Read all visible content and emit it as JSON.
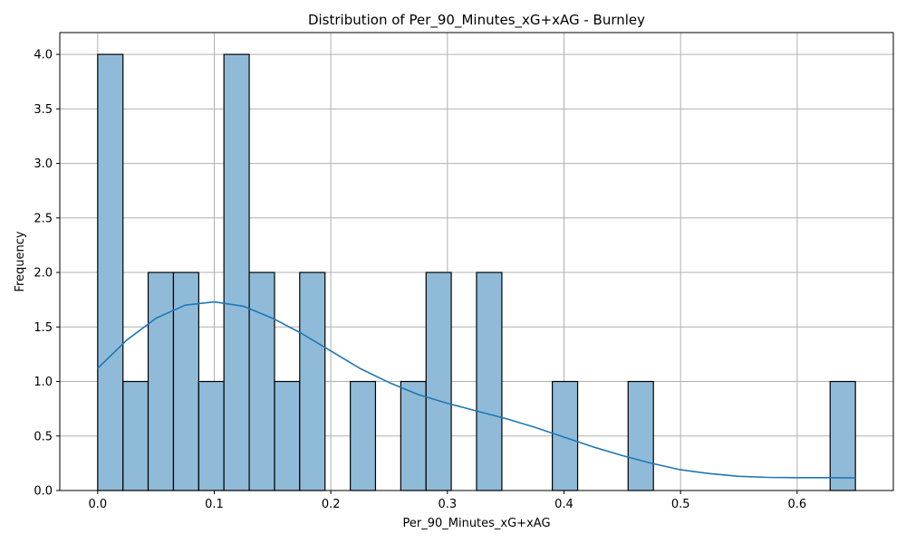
{
  "chart_data": {
    "type": "bar",
    "title": "Distribution of Per_90_Minutes_xG+xAG - Burnley",
    "xlabel": "Per_90_Minutes_xG+xAG",
    "ylabel": "Frequency",
    "xlim": [
      -0.0325,
      0.6825
    ],
    "ylim": [
      0,
      4.2
    ],
    "grid": true,
    "x_ticks": [
      "0.0",
      "0.1",
      "0.2",
      "0.3",
      "0.4",
      "0.5",
      "0.6"
    ],
    "y_ticks": [
      "0.0",
      "0.5",
      "1.0",
      "1.5",
      "2.0",
      "2.5",
      "3.0",
      "3.5",
      "4.0"
    ],
    "bin_edges": [
      0.0,
      0.0217,
      0.0433,
      0.065,
      0.0867,
      0.1083,
      0.13,
      0.1517,
      0.1733,
      0.195,
      0.2167,
      0.2383,
      0.26,
      0.2817,
      0.3033,
      0.325,
      0.3467,
      0.3683,
      0.39,
      0.4117,
      0.4333,
      0.455,
      0.4767,
      0.4983,
      0.52,
      0.5417,
      0.5633,
      0.585,
      0.6067,
      0.6283,
      0.65
    ],
    "counts": [
      4,
      1,
      2,
      2,
      1,
      4,
      2,
      1,
      2,
      0,
      1,
      0,
      1,
      2,
      0,
      2,
      0,
      0,
      1,
      0,
      0,
      1,
      0,
      0,
      0,
      0,
      0,
      0,
      0,
      1
    ],
    "kde": {
      "x": [
        0.0,
        0.025,
        0.05,
        0.075,
        0.1,
        0.125,
        0.15,
        0.175,
        0.2,
        0.225,
        0.25,
        0.275,
        0.3,
        0.325,
        0.35,
        0.375,
        0.4,
        0.425,
        0.45,
        0.475,
        0.5,
        0.525,
        0.55,
        0.575,
        0.6,
        0.625,
        0.65
      ],
      "y": [
        1.12,
        1.38,
        1.58,
        1.7,
        1.73,
        1.69,
        1.58,
        1.44,
        1.28,
        1.12,
        0.99,
        0.88,
        0.8,
        0.73,
        0.66,
        0.58,
        0.49,
        0.4,
        0.32,
        0.25,
        0.19,
        0.155,
        0.13,
        0.12,
        0.118,
        0.118,
        0.115
      ]
    },
    "colors": {
      "bar_fill": "#8fbbd9",
      "bar_edge": "#000000",
      "kde_line": "#1f77b4",
      "grid": "#b0b0b0"
    }
  }
}
